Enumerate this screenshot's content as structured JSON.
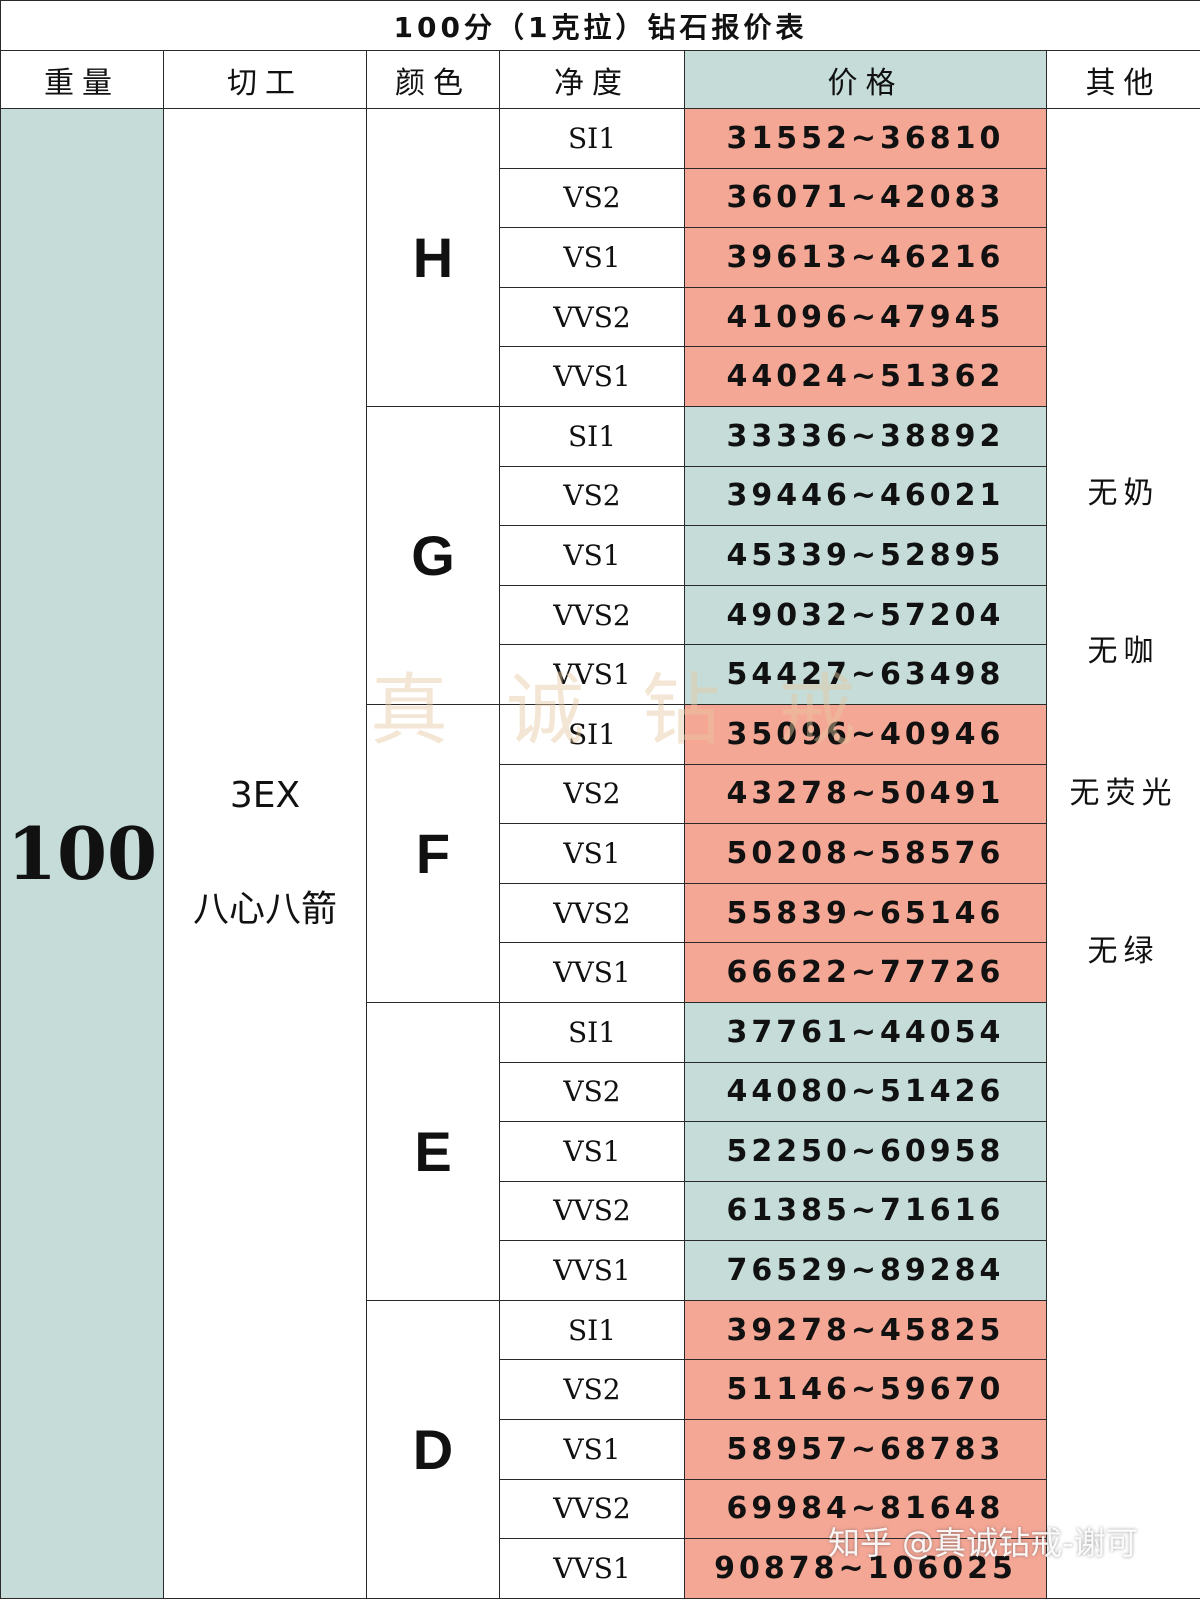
{
  "title": "100分（1克拉）钻石报价表",
  "headers": {
    "weight": "重量",
    "cut": "切工",
    "color": "颜色",
    "clarity": "净度",
    "price": "价格",
    "other": "其他"
  },
  "weight": "100",
  "cut": {
    "grade": "3EX",
    "pattern": "八心八箭"
  },
  "other_notes": [
    "无奶",
    "无咖",
    "无荧光",
    "无绿"
  ],
  "colors": {
    "accent_teal": "#c5dcd9",
    "accent_pink": "#f5a796"
  },
  "groups": [
    {
      "color": "H",
      "tone": "pink",
      "rows": [
        {
          "clarity": "SI1",
          "price": "31552~36810"
        },
        {
          "clarity": "VS2",
          "price": "36071~42083"
        },
        {
          "clarity": "VS1",
          "price": "39613~46216"
        },
        {
          "clarity": "VVS2",
          "price": "41096~47945"
        },
        {
          "clarity": "VVS1",
          "price": "44024~51362"
        }
      ]
    },
    {
      "color": "G",
      "tone": "teal",
      "rows": [
        {
          "clarity": "SI1",
          "price": "33336~38892"
        },
        {
          "clarity": "VS2",
          "price": "39446~46021"
        },
        {
          "clarity": "VS1",
          "price": "45339~52895"
        },
        {
          "clarity": "VVS2",
          "price": "49032~57204"
        },
        {
          "clarity": "VVS1",
          "price": "54427~63498"
        }
      ]
    },
    {
      "color": "F",
      "tone": "pink",
      "rows": [
        {
          "clarity": "SI1",
          "price": "35096~40946"
        },
        {
          "clarity": "VS2",
          "price": "43278~50491"
        },
        {
          "clarity": "VS1",
          "price": "50208~58576"
        },
        {
          "clarity": "VVS2",
          "price": "55839~65146"
        },
        {
          "clarity": "VVS1",
          "price": "66622~77726"
        }
      ]
    },
    {
      "color": "E",
      "tone": "teal",
      "rows": [
        {
          "clarity": "SI1",
          "price": "37761~44054"
        },
        {
          "clarity": "VS2",
          "price": "44080~51426"
        },
        {
          "clarity": "VS1",
          "price": "52250~60958"
        },
        {
          "clarity": "VVS2",
          "price": "61385~71616"
        },
        {
          "clarity": "VVS1",
          "price": "76529~89284"
        }
      ]
    },
    {
      "color": "D",
      "tone": "pink",
      "rows": [
        {
          "clarity": "SI1",
          "price": "39278~45825"
        },
        {
          "clarity": "VS2",
          "price": "51146~59670"
        },
        {
          "clarity": "VS1",
          "price": "58957~68783"
        },
        {
          "clarity": "VVS2",
          "price": "69984~81648"
        },
        {
          "clarity": "VVS1",
          "price": "90878~106025"
        }
      ]
    }
  ],
  "watermark": "真诚钻戒",
  "credit": "知乎 @真诚钻戒-谢可"
}
